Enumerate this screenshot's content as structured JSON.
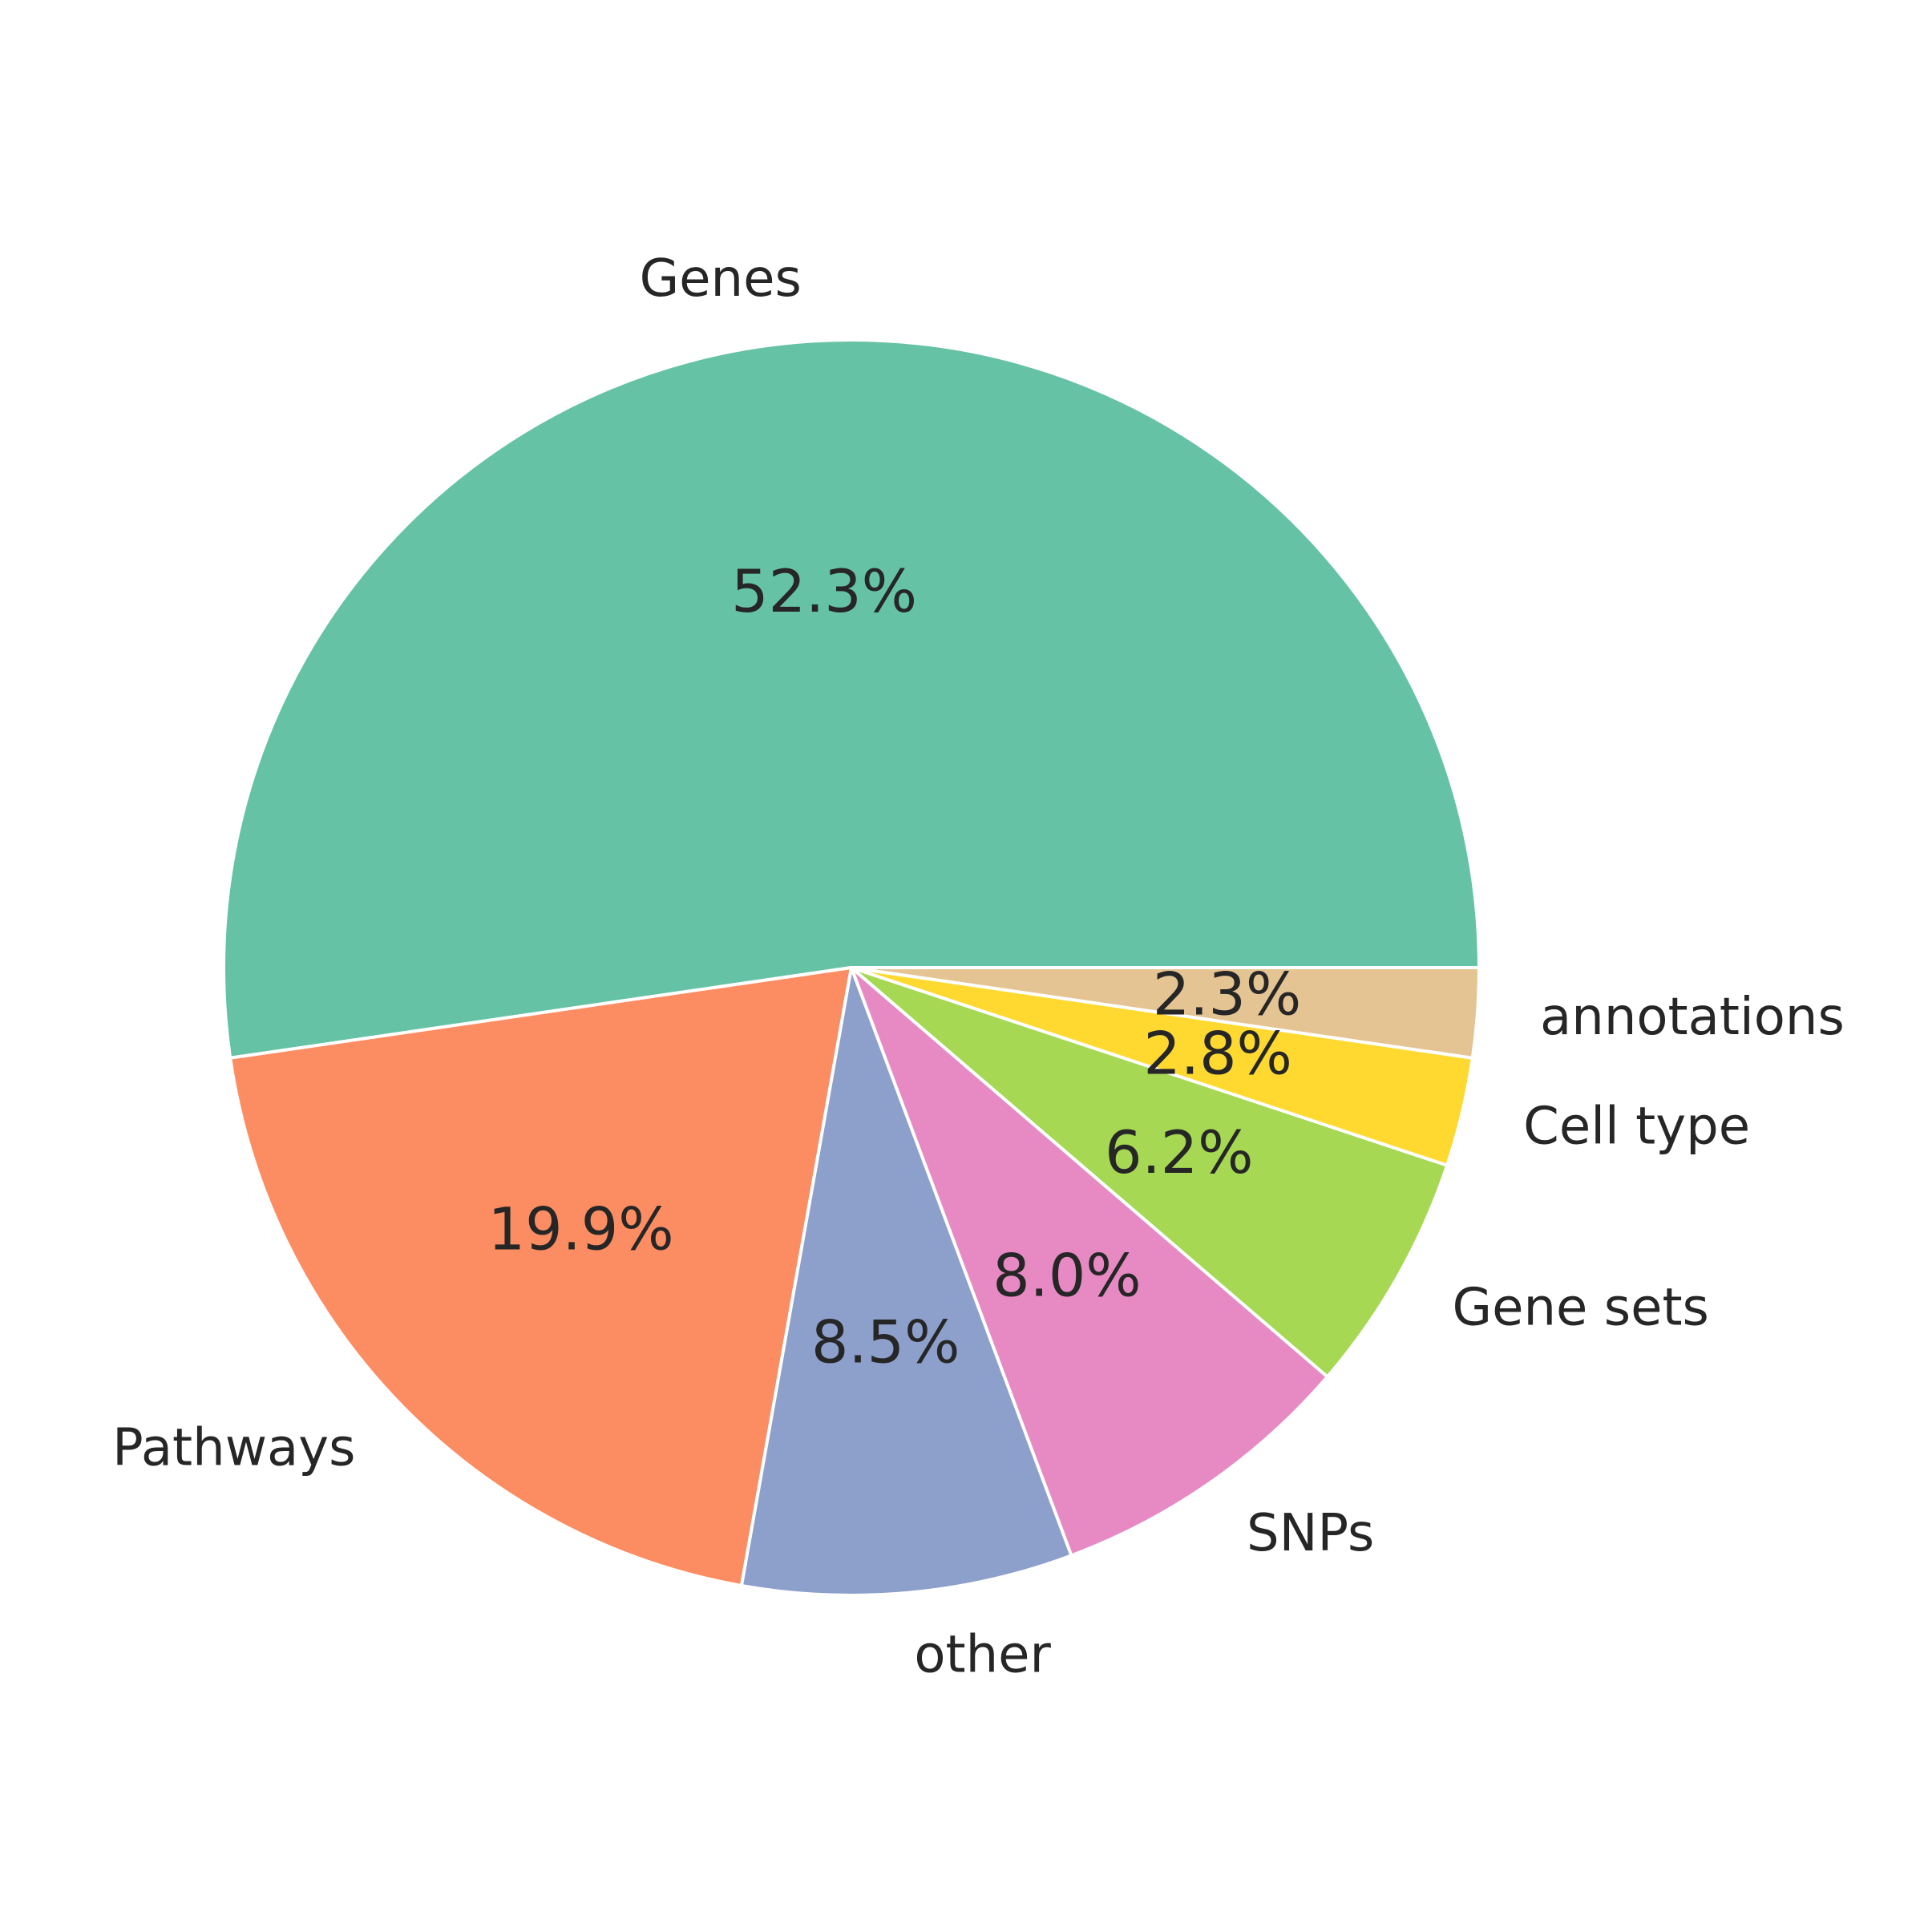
{
  "chart_data": {
    "type": "pie",
    "start_angle_deg": 0,
    "direction": "counterclockwise",
    "edge_color": "#ffffff",
    "slices": [
      {
        "label": "Genes",
        "value": 52.3,
        "pct_text": "52.3%",
        "color": "#66c2a5"
      },
      {
        "label": "Pathways",
        "value": 19.9,
        "pct_text": "19.9%",
        "color": "#fc8d62"
      },
      {
        "label": "other",
        "value": 8.5,
        "pct_text": "8.5%",
        "color": "#8da0cb"
      },
      {
        "label": "SNPs",
        "value": 8.0,
        "pct_text": "8.0%",
        "color": "#e78ac3"
      },
      {
        "label": "Gene sets",
        "value": 6.2,
        "pct_text": "6.2%",
        "color": "#a6d854"
      },
      {
        "label": "Cell type",
        "value": 2.8,
        "pct_text": "2.8%",
        "color": "#ffd92f"
      },
      {
        "label": "annotations",
        "value": 2.3,
        "pct_text": "2.3%",
        "color": "#e5c494"
      }
    ]
  }
}
